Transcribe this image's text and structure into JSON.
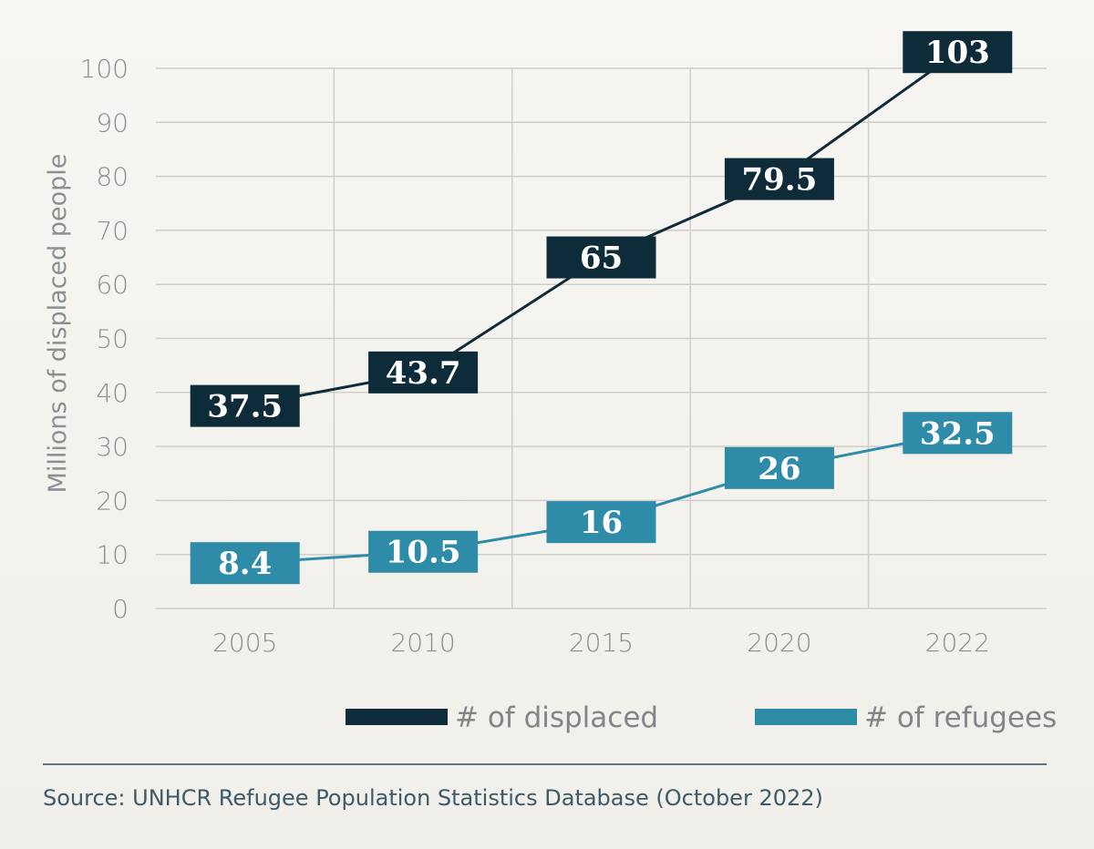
{
  "chart_data": {
    "type": "line",
    "categories": [
      "2005",
      "2010",
      "2015",
      "2020",
      "2022"
    ],
    "series": [
      {
        "name": "# of displaced",
        "values": [
          37.5,
          43.7,
          65,
          79.5,
          103
        ],
        "labels": [
          "37.5",
          "43.7",
          "65",
          "79.5",
          "103"
        ],
        "color": "#0e2b3a"
      },
      {
        "name": "# of refugees",
        "values": [
          8.4,
          10.5,
          16,
          26,
          32.5
        ],
        "labels": [
          "8.4",
          "10.5",
          "16",
          "26",
          "32.5"
        ],
        "color": "#2f8ca9"
      }
    ],
    "ylabel": "Millions of displaced people",
    "ylim": [
      0,
      100
    ],
    "yticks": [
      "0",
      "10",
      "20",
      "30",
      "40",
      "50",
      "60",
      "70",
      "80",
      "90",
      "100"
    ],
    "grid": true,
    "legend_position": "bottom"
  },
  "source": "Source: UNHCR Refugee Population Statistics Database (October 2022)",
  "colors": {
    "gridline": "#cfcfc9",
    "divider": "#2e4a58"
  }
}
